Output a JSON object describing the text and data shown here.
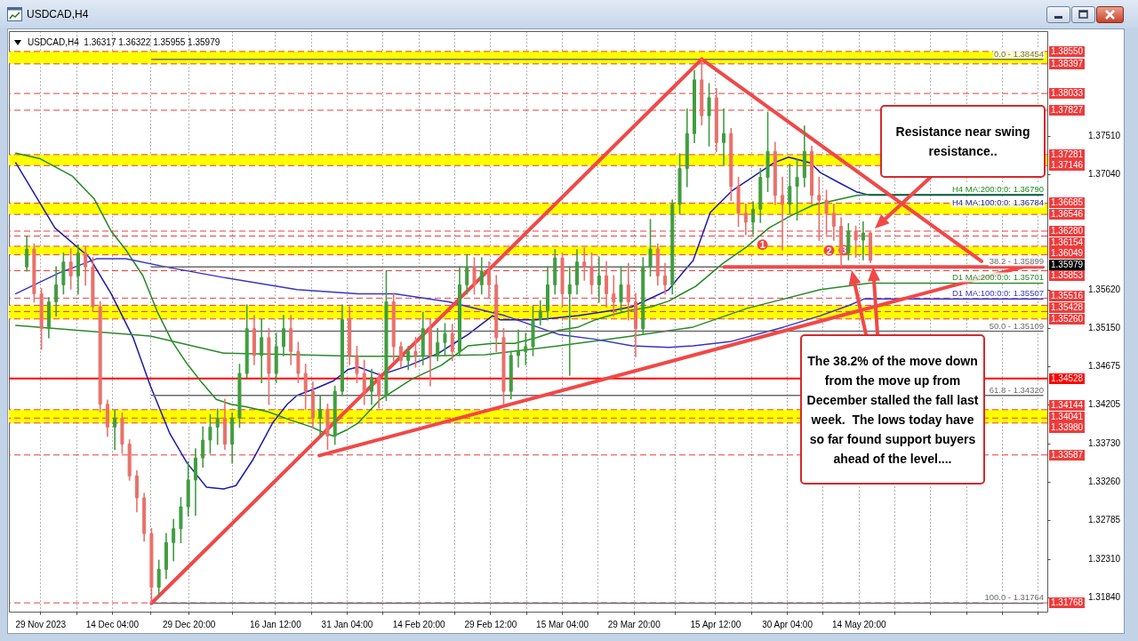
{
  "chart_data": {
    "type": "candlestick",
    "title": "USDCAD,H4",
    "subtitle": "USDCAD,H4  1.36317 1.36322 1.35955 1.35979",
    "x": [
      "2023-11-26T18:00",
      "2023-11-28T06:00",
      "2023-11-29T18:00",
      "2023-12-01T06:00",
      "2023-12-02T18:00",
      "2023-12-04T06:00",
      "2023-12-05T18:00",
      "2023-12-07T06:00",
      "2023-12-08T18:00",
      "2023-12-10T06:00",
      "2023-12-11T18:00",
      "2023-12-13T06:00",
      "2023-12-14T18:00",
      "2023-12-16T06:00",
      "2023-12-17T18:00",
      "2023-12-19T06:00",
      "2023-12-20T18:00",
      "2023-12-22T06:00",
      "2023-12-23T18:00",
      "2023-12-25T06:00",
      "2023-12-26T18:00",
      "2023-12-28T06:00",
      "2023-12-29T18:00",
      "2023-12-31T06:00",
      "2024-01-01T18:00",
      "2024-01-03T06:00",
      "2024-01-04T18:00",
      "2024-01-06T06:00",
      "2024-01-07T18:00",
      "2024-01-09T06:00",
      "2024-01-10T18:00",
      "2024-01-12T06:00",
      "2024-01-13T18:00",
      "2024-01-15T06:00",
      "2024-01-16T18:00",
      "2024-01-18T06:00",
      "2024-01-19T18:00",
      "2024-01-21T06:00",
      "2024-01-22T18:00",
      "2024-01-24T06:00",
      "2024-01-25T18:00",
      "2024-01-27T06:00",
      "2024-01-28T18:00",
      "2024-01-30T06:00",
      "2024-01-31T18:00",
      "2024-02-02T06:00",
      "2024-02-03T18:00",
      "2024-02-05T06:00",
      "2024-02-06T18:00",
      "2024-02-08T06:00",
      "2024-02-09T18:00",
      "2024-02-11T06:00",
      "2024-02-12T18:00",
      "2024-02-14T06:00",
      "2024-02-15T18:00",
      "2024-02-17T06:00",
      "2024-02-18T18:00",
      "2024-02-20T06:00",
      "2024-02-21T18:00",
      "2024-02-23T06:00",
      "2024-02-24T18:00",
      "2024-02-26T06:00",
      "2024-02-27T18:00",
      "2024-02-29T06:00",
      "2024-03-01T18:00",
      "2024-03-03T06:00",
      "2024-03-04T18:00",
      "2024-03-06T06:00",
      "2024-03-07T18:00",
      "2024-03-09T06:00",
      "2024-03-10T18:00",
      "2024-03-12T06:00",
      "2024-03-13T18:00",
      "2024-03-15T06:00",
      "2024-03-16T18:00",
      "2024-03-18T06:00",
      "2024-03-19T18:00",
      "2024-03-21T06:00",
      "2024-03-22T18:00",
      "2024-03-24T06:00",
      "2024-03-25T18:00",
      "2024-03-27T06:00",
      "2024-03-28T18:00",
      "2024-03-30T06:00",
      "2024-03-31T18:00",
      "2024-04-02T06:00",
      "2024-04-03T18:00",
      "2024-04-05T06:00",
      "2024-04-06T18:00",
      "2024-04-08T06:00",
      "2024-04-09T18:00",
      "2024-04-11T06:00",
      "2024-04-12T18:00",
      "2024-04-14T06:00",
      "2024-04-15T18:00",
      "2024-04-17T06:00",
      "2024-04-18T18:00",
      "2024-04-20T06:00",
      "2024-04-21T18:00",
      "2024-04-23T06:00",
      "2024-04-24T18:00",
      "2024-04-26T06:00",
      "2024-04-27T18:00",
      "2024-04-29T06:00",
      "2024-04-30T18:00",
      "2024-05-02T06:00",
      "2024-05-03T18:00",
      "2024-05-05T06:00",
      "2024-05-06T18:00",
      "2024-05-08T06:00",
      "2024-05-09T18:00",
      "2024-05-11T06:00",
      "2024-05-12T18:00",
      "2024-05-14T06:00",
      "2024-05-15T18:00",
      "2024-05-17T06:00"
    ],
    "ohlc": [
      [
        1.359,
        1.3627,
        1.3585,
        1.3612
      ],
      [
        1.3612,
        1.3618,
        1.3547,
        1.3557
      ],
      [
        1.3557,
        1.3563,
        1.3489,
        1.3514
      ],
      [
        1.3514,
        1.3552,
        1.3503,
        1.3547
      ],
      [
        1.3547,
        1.359,
        1.353,
        1.3568
      ],
      [
        1.3568,
        1.3607,
        1.3557,
        1.3596
      ],
      [
        1.3596,
        1.3612,
        1.3563,
        1.3579
      ],
      [
        1.3579,
        1.3617,
        1.3557,
        1.3607
      ],
      [
        1.3607,
        1.3614,
        1.3568,
        1.359
      ],
      [
        1.359,
        1.3601,
        1.3536,
        1.3541
      ],
      [
        1.3541,
        1.3547,
        1.3412,
        1.3421
      ],
      [
        1.3421,
        1.3426,
        1.3382,
        1.3393
      ],
      [
        1.3393,
        1.3413,
        1.3366,
        1.3404
      ],
      [
        1.3404,
        1.341,
        1.3361,
        1.3372
      ],
      [
        1.3372,
        1.3377,
        1.3328,
        1.3333
      ],
      [
        1.3333,
        1.3339,
        1.3289,
        1.3306
      ],
      [
        1.3306,
        1.3311,
        1.3253,
        1.3262
      ],
      [
        1.3262,
        1.3268,
        1.3177,
        1.3196
      ],
      [
        1.3196,
        1.3229,
        1.3186,
        1.3218
      ],
      [
        1.3218,
        1.3262,
        1.3207,
        1.3251
      ],
      [
        1.3251,
        1.3279,
        1.3229,
        1.3268
      ],
      [
        1.3268,
        1.3306,
        1.3251,
        1.3295
      ],
      [
        1.3295,
        1.335,
        1.3284,
        1.3328
      ],
      [
        1.3328,
        1.3366,
        1.3285,
        1.3355
      ],
      [
        1.3355,
        1.3393,
        1.3344,
        1.3377
      ],
      [
        1.3377,
        1.3408,
        1.3361,
        1.3393
      ],
      [
        1.3393,
        1.3415,
        1.3372,
        1.3404
      ],
      [
        1.3404,
        1.3427,
        1.3366,
        1.3372
      ],
      [
        1.3372,
        1.341,
        1.3349,
        1.3404
      ],
      [
        1.3404,
        1.347,
        1.3393,
        1.3459
      ],
      [
        1.3459,
        1.3543,
        1.3454,
        1.3514
      ],
      [
        1.3514,
        1.353,
        1.347,
        1.3481
      ],
      [
        1.3481,
        1.3525,
        1.3448,
        1.3503
      ],
      [
        1.3503,
        1.3514,
        1.3421,
        1.3459
      ],
      [
        1.3459,
        1.3508,
        1.3448,
        1.3492
      ],
      [
        1.3492,
        1.353,
        1.3481,
        1.3514
      ],
      [
        1.3514,
        1.353,
        1.347,
        1.3486
      ],
      [
        1.3486,
        1.3497,
        1.3448,
        1.3459
      ],
      [
        1.3459,
        1.347,
        1.3415,
        1.3437
      ],
      [
        1.3437,
        1.3448,
        1.3393,
        1.3404
      ],
      [
        1.3404,
        1.3432,
        1.3382,
        1.3415
      ],
      [
        1.3415,
        1.3421,
        1.3366,
        1.3382
      ],
      [
        1.3382,
        1.3443,
        1.3372,
        1.3437
      ],
      [
        1.3437,
        1.3543,
        1.3432,
        1.3525
      ],
      [
        1.3525,
        1.3541,
        1.347,
        1.3481
      ],
      [
        1.3481,
        1.3492,
        1.3448,
        1.3459
      ],
      [
        1.3459,
        1.3475,
        1.3421,
        1.3437
      ],
      [
        1.3437,
        1.3464,
        1.3421,
        1.3454
      ],
      [
        1.3454,
        1.3459,
        1.3417,
        1.3432
      ],
      [
        1.3432,
        1.3585,
        1.3426,
        1.3547
      ],
      [
        1.3547,
        1.3557,
        1.3475,
        1.3492
      ],
      [
        1.3492,
        1.3497,
        1.3467,
        1.3475
      ],
      [
        1.3475,
        1.3492,
        1.3464,
        1.3486
      ],
      [
        1.3486,
        1.3503,
        1.3467,
        1.3481
      ],
      [
        1.3481,
        1.3534,
        1.347,
        1.3514
      ],
      [
        1.3514,
        1.3525,
        1.3444,
        1.3481
      ],
      [
        1.3481,
        1.3514,
        1.3475,
        1.3497
      ],
      [
        1.3497,
        1.352,
        1.3481,
        1.3508
      ],
      [
        1.3508,
        1.3519,
        1.3475,
        1.3486
      ],
      [
        1.3486,
        1.359,
        1.3481,
        1.3568
      ],
      [
        1.3568,
        1.3605,
        1.3557,
        1.359
      ],
      [
        1.359,
        1.3601,
        1.3557,
        1.3568
      ],
      [
        1.3568,
        1.3601,
        1.3557,
        1.3585
      ],
      [
        1.3585,
        1.3596,
        1.3552,
        1.3568
      ],
      [
        1.3568,
        1.3579,
        1.3486,
        1.3503
      ],
      [
        1.3503,
        1.3514,
        1.3421,
        1.3437
      ],
      [
        1.3437,
        1.3486,
        1.3428,
        1.3481
      ],
      [
        1.3481,
        1.3512,
        1.3467,
        1.3486
      ],
      [
        1.3486,
        1.3508,
        1.347,
        1.3492
      ],
      [
        1.3492,
        1.3541,
        1.3481,
        1.3525
      ],
      [
        1.3525,
        1.3548,
        1.3519,
        1.3536
      ],
      [
        1.3536,
        1.359,
        1.3525,
        1.3568
      ],
      [
        1.3568,
        1.3611,
        1.3557,
        1.3601
      ],
      [
        1.3601,
        1.3607,
        1.3541,
        1.3557
      ],
      [
        1.3557,
        1.359,
        1.3457,
        1.3568
      ],
      [
        1.3568,
        1.3611,
        1.3557,
        1.3596
      ],
      [
        1.3596,
        1.3613,
        1.3574,
        1.359
      ],
      [
        1.359,
        1.3607,
        1.3557,
        1.3568
      ],
      [
        1.3568,
        1.3602,
        1.3547,
        1.3579
      ],
      [
        1.3579,
        1.3596,
        1.3541,
        1.3557
      ],
      [
        1.3557,
        1.3579,
        1.353,
        1.3547
      ],
      [
        1.3547,
        1.359,
        1.3536,
        1.3568
      ],
      [
        1.3568,
        1.3594,
        1.3525,
        1.3547
      ],
      [
        1.3547,
        1.3557,
        1.348,
        1.3514
      ],
      [
        1.3514,
        1.3601,
        1.3508,
        1.359
      ],
      [
        1.359,
        1.3648,
        1.3579,
        1.3612
      ],
      [
        1.3612,
        1.3618,
        1.3568,
        1.3579
      ],
      [
        1.3579,
        1.3594,
        1.3557,
        1.3568
      ],
      [
        1.3568,
        1.3672,
        1.3557,
        1.3667
      ],
      [
        1.3667,
        1.3729,
        1.3656,
        1.3711
      ],
      [
        1.3711,
        1.3784,
        1.3689,
        1.3754
      ],
      [
        1.3754,
        1.3831,
        1.3743,
        1.382
      ],
      [
        1.382,
        1.3845,
        1.3765,
        1.3776
      ],
      [
        1.3776,
        1.3815,
        1.3739,
        1.3798
      ],
      [
        1.3798,
        1.3809,
        1.3732,
        1.3743
      ],
      [
        1.3743,
        1.3784,
        1.3716,
        1.3754
      ],
      [
        1.3754,
        1.376,
        1.3672,
        1.3689
      ],
      [
        1.3689,
        1.37,
        1.364,
        1.3656
      ],
      [
        1.3656,
        1.3667,
        1.363,
        1.3645
      ],
      [
        1.3645,
        1.367,
        1.363,
        1.3661
      ],
      [
        1.3661,
        1.3711,
        1.3645,
        1.37
      ],
      [
        1.37,
        1.378,
        1.3683,
        1.3732
      ],
      [
        1.3732,
        1.3743,
        1.3667,
        1.3678
      ],
      [
        1.3678,
        1.37,
        1.3611,
        1.3667
      ],
      [
        1.3667,
        1.3716,
        1.3656,
        1.3689
      ],
      [
        1.3689,
        1.3722,
        1.3648,
        1.37
      ],
      [
        1.37,
        1.3763,
        1.3689,
        1.3732
      ],
      [
        1.3732,
        1.3738,
        1.3667,
        1.3678
      ],
      [
        1.3678,
        1.37,
        1.3623,
        1.3672
      ],
      [
        1.3672,
        1.3684,
        1.363,
        1.3656
      ],
      [
        1.3656,
        1.3667,
        1.3623,
        1.364
      ],
      [
        1.364,
        1.365,
        1.3591,
        1.3607
      ],
      [
        1.3607,
        1.3643,
        1.3599,
        1.3634
      ],
      [
        1.3634,
        1.364,
        1.3602,
        1.3623
      ],
      [
        1.3623,
        1.3645,
        1.3599,
        1.36317
      ],
      [
        1.36317,
        1.36322,
        1.35955,
        1.35979
      ]
    ],
    "colors": [
      "#3f9d3f",
      "#e9706a",
      "#e9706a",
      "#3f9d3f",
      "#3f9d3f",
      "#3f9d3f",
      "#e9706a",
      "#3f9d3f",
      "#e9706a",
      "#e9706a",
      "#e9706a",
      "#e9706a",
      "#3f9d3f",
      "#e9706a",
      "#e9706a",
      "#e9706a",
      "#e9706a",
      "#e9706a",
      "#3f9d3f",
      "#3f9d3f",
      "#3f9d3f",
      "#3f9d3f",
      "#3f9d3f",
      "#3f9d3f",
      "#3f9d3f",
      "#3f9d3f",
      "#3f9d3f",
      "#e9706a",
      "#3f9d3f",
      "#3f9d3f",
      "#3f9d3f",
      "#e9706a",
      "#3f9d3f",
      "#e9706a",
      "#3f9d3f",
      "#3f9d3f",
      "#e9706a",
      "#e9706a",
      "#e9706a",
      "#e9706a",
      "#3f9d3f",
      "#e9706a",
      "#3f9d3f",
      "#3f9d3f",
      "#e9706a",
      "#e9706a",
      "#e9706a",
      "#3f9d3f",
      "#e9706a",
      "#3f9d3f",
      "#e9706a",
      "#e9706a",
      "#3f9d3f",
      "#e9706a",
      "#3f9d3f",
      "#e9706a",
      "#3f9d3f",
      "#3f9d3f",
      "#e9706a",
      "#3f9d3f",
      "#3f9d3f",
      "#e9706a",
      "#3f9d3f",
      "#e9706a",
      "#e9706a",
      "#e9706a",
      "#3f9d3f",
      "#3f9d3f",
      "#3f9d3f",
      "#3f9d3f",
      "#3f9d3f",
      "#3f9d3f",
      "#3f9d3f",
      "#e9706a",
      "#3f9d3f",
      "#3f9d3f",
      "#e9706a",
      "#e9706a",
      "#3f9d3f",
      "#e9706a",
      "#e9706a",
      "#3f9d3f",
      "#e9706a",
      "#e9706a",
      "#3f9d3f",
      "#3f9d3f",
      "#e9706a",
      "#e9706a",
      "#3f9d3f",
      "#3f9d3f",
      "#3f9d3f",
      "#3f9d3f",
      "#e9706a",
      "#3f9d3f",
      "#e9706a",
      "#3f9d3f",
      "#e9706a",
      "#e9706a",
      "#e9706a",
      "#3f9d3f",
      "#3f9d3f",
      "#3f9d3f",
      "#e9706a",
      "#e9706a",
      "#3f9d3f",
      "#3f9d3f",
      "#3f9d3f",
      "#e9706a",
      "#e9706a",
      "#e9706a",
      "#e9706a",
      "#e9706a",
      "#3f9d3f",
      "#e9706a",
      "#3f9d3f",
      "#e9706a"
    ],
    "series": [
      {
        "type": "line",
        "name": "H4 MA:100:0:0: 1.36784",
        "color": "#1a1ab0",
        "x": [
          "2023-11-24T12:00",
          "2023-12-02T12:00",
          "2023-12-09T12:00",
          "2023-12-14T00:00",
          "2023-12-18T12:00",
          "2023-12-22T00:00",
          "2023-12-26T00:00",
          "2023-12-29T12:00",
          "2024-01-02T12:00",
          "2024-01-06T00:00",
          "2024-01-08T12:00",
          "2024-01-12T00:00",
          "2024-01-16T00:00",
          "2024-01-19T00:00",
          "2024-01-21T00:00",
          "2024-01-25T00:00",
          "2024-01-28T12:00",
          "2024-01-31T12:00",
          "2024-02-02T12:00",
          "2024-02-07T00:00",
          "2024-02-13T00:00",
          "2024-02-19T00:00",
          "2024-02-25T00:00",
          "2024-03-01T00:00",
          "2024-03-02T12:00",
          "2024-03-10T00:00",
          "2024-03-18T12:00",
          "2024-03-26T00:00",
          "2024-03-29T12:00",
          "2024-04-02T12:00",
          "2024-04-06T00:00",
          "2024-04-09T00:00",
          "2024-04-11T00:00",
          "2024-04-14T12:00",
          "2024-04-19T00:00",
          "2024-04-23T12:00",
          "2024-04-27T12:00",
          "2024-04-30T12:00",
          "2024-05-05T00:00",
          "2024-05-07T00:00",
          "2024-05-11T00:00",
          "2024-05-14T12:00",
          "2024-05-17T00:00",
          "2024-06-21T12:00"
        ],
        "values": [
          1.3718,
          1.3638,
          1.3602,
          1.3557,
          1.3503,
          1.3444,
          1.3385,
          1.3349,
          1.3319,
          1.3317,
          1.3321,
          1.3353,
          1.3398,
          1.3421,
          1.3432,
          1.3441,
          1.345,
          1.3464,
          1.3467,
          1.3457,
          1.3469,
          1.3484,
          1.3507,
          1.353,
          1.3525,
          1.3525,
          1.353,
          1.3537,
          1.3541,
          1.3552,
          1.3562,
          1.3584,
          1.3598,
          1.3657,
          1.3684,
          1.3702,
          1.3718,
          1.3725,
          1.3718,
          1.3706,
          1.3693,
          1.3682,
          1.36784,
          1.36784
        ]
      },
      {
        "type": "line",
        "name": "H4 MA:200:0:0: 1.36790",
        "color": "#1f8a1f",
        "x": [
          "2023-11-24T12:00",
          "2023-11-29T12:00",
          "2023-12-06T00:00",
          "2023-12-10T12:00",
          "2023-12-14T00:00",
          "2023-12-17T00:00",
          "2023-12-20T12:00",
          "2023-12-23T12:00",
          "2023-12-26T12:00",
          "2023-12-29T12:00",
          "2024-01-01T12:00",
          "2024-01-04T12:00",
          "2024-01-07T12:00",
          "2024-01-10T12:00",
          "2024-01-15T00:00",
          "2024-01-19T12:00",
          "2024-01-24T00:00",
          "2024-01-27T00:00",
          "2024-01-28T12:00",
          "2024-01-31T00:00",
          "2024-02-02T12:00",
          "2024-02-07T00:00",
          "2024-02-13T12:00",
          "2024-02-19T12:00",
          "2024-02-25T00:00",
          "2024-03-01T00:00",
          "2024-03-05T12:00",
          "2024-03-10T00:00",
          "2024-03-14T12:00",
          "2024-03-18T12:00",
          "2024-03-22T00:00",
          "2024-03-26T00:00",
          "2024-03-29T12:00",
          "2024-04-02T12:00",
          "2024-04-06T00:00",
          "2024-04-09T00:00",
          "2024-04-11T12:00",
          "2024-04-17T00:00",
          "2024-04-22T00:00",
          "2024-04-26T12:00",
          "2024-05-01T00:00",
          "2024-05-05T12:00",
          "2024-05-10T00:00",
          "2024-05-14T12:00",
          "2024-05-17T00:00",
          "2024-06-21T12:00"
        ],
        "values": [
          1.373,
          1.3723,
          1.3702,
          1.3674,
          1.3634,
          1.3611,
          1.3579,
          1.3534,
          1.3498,
          1.3471,
          1.3448,
          1.3427,
          1.3421,
          1.3418,
          1.3412,
          1.3402,
          1.3393,
          1.3385,
          1.3382,
          1.3389,
          1.3398,
          1.3427,
          1.3452,
          1.3469,
          1.3493,
          1.3496,
          1.3496,
          1.3503,
          1.3512,
          1.3516,
          1.3525,
          1.3532,
          1.3537,
          1.3541,
          1.3548,
          1.3558,
          1.3566,
          1.3594,
          1.3615,
          1.3638,
          1.3653,
          1.3666,
          1.3672,
          1.3678,
          1.3679,
          1.3679
        ]
      },
      {
        "type": "line",
        "name": "D1 MA:200:0:0: 1.35701",
        "color": "#2a8a2a",
        "x": [
          "2023-11-24T12:00",
          "2023-12-22T00:00",
          "2024-01-06T00:00",
          "2024-01-21T00:00",
          "2024-02-02T12:00",
          "2024-02-13T12:00",
          "2024-02-28T12:00",
          "2024-03-14T12:00",
          "2024-03-29T12:00",
          "2024-04-11T00:00",
          "2024-04-22T00:00",
          "2024-05-07T00:00",
          "2024-05-17T00:00",
          "2024-06-21T12:00"
        ],
        "values": [
          1.3518,
          1.3505,
          1.3484,
          1.3482,
          1.348,
          1.348,
          1.3482,
          1.3493,
          1.3505,
          1.3516,
          1.3539,
          1.3562,
          1.35701,
          1.35701
        ]
      },
      {
        "type": "line",
        "name": "D1 MA:100:0:0: 1.35507",
        "color": "#3434c8",
        "x": [
          "2023-11-24T12:00",
          "2023-12-03T12:00",
          "2023-12-11T00:00",
          "2023-12-17T00:00",
          "2023-12-26T00:00",
          "2024-01-06T00:00",
          "2024-01-21T00:00",
          "2024-02-02T12:00",
          "2024-02-10T00:00",
          "2024-02-21T00:00",
          "2024-03-03T12:00",
          "2024-03-14T12:00",
          "2024-03-22T00:00",
          "2024-03-29T12:00",
          "2024-04-06T00:00",
          "2024-04-11T00:00",
          "2024-04-18T12:00",
          "2024-04-29T12:00",
          "2024-05-07T00:00",
          "2024-05-13T00:00",
          "2024-05-16T00:00",
          "2024-06-21T12:00"
        ],
        "values": [
          1.3557,
          1.3583,
          1.36,
          1.36,
          1.3589,
          1.3577,
          1.3562,
          1.3557,
          1.3557,
          1.3547,
          1.353,
          1.3507,
          1.3501,
          1.3493,
          1.3491,
          1.3493,
          1.3498,
          1.3516,
          1.353,
          1.3543,
          1.35507,
          1.35507
        ]
      },
      {
        "type": "line",
        "name": "0.0 - 1.38454",
        "color": "#6a6a6a",
        "x": [
          "2023-12-22T06:00",
          "2024-06-21T12:00"
        ],
        "values": [
          1.38454,
          1.38454
        ]
      },
      {
        "type": "line",
        "name": "38.2 - 1.35899",
        "color": "#6a6a6a",
        "x": [
          "2023-12-22T06:00",
          "2024-06-21T12:00"
        ],
        "values": [
          1.35899,
          1.35899
        ]
      },
      {
        "type": "line",
        "name": "50.0 - 1.35109",
        "color": "#6a6a6a",
        "x": [
          "2023-12-22T06:00",
          "2024-06-21T12:00"
        ],
        "values": [
          1.35109,
          1.35109
        ]
      },
      {
        "type": "line",
        "name": "61.8 - 1.34320",
        "color": "#6a6a6a",
        "x": [
          "2023-12-22T06:00",
          "2024-06-21T12:00"
        ],
        "values": [
          1.3432,
          1.3432
        ]
      },
      {
        "type": "line",
        "name": "100.0 - 1.31764",
        "color": "#6a6a6a",
        "x": [
          "2023-12-22T06:00",
          "2024-06-21T12:00"
        ],
        "values": [
          1.31764,
          1.31764
        ]
      },
      {
        "type": "line",
        "color": "#f04848",
        "x": [
          "2023-12-22T06:00",
          "2024-04-12T18:00"
        ],
        "values": [
          1.31764,
          1.38454
        ]
      },
      {
        "type": "line",
        "color": "#f04848",
        "x": [
          "2024-04-12T18:00",
          "2024-06-08T23:00"
        ],
        "values": [
          1.38454,
          1.3597
        ]
      },
      {
        "type": "line",
        "color": "#f04848",
        "x": [
          "2024-01-25T14:00",
          "2024-06-19T05:00"
        ],
        "values": [
          1.3358,
          1.3593
        ]
      },
      {
        "type": "line",
        "color": "#f04848",
        "x": [
          "2024-04-17T08:00",
          "2024-06-21T12:00"
        ],
        "values": [
          1.359,
          1.359
        ]
      }
    ],
    "xlim": [
      "2023-11-24T00:00",
      "2024-06-21T12:00"
    ],
    "xticks": [
      {
        "value": "2023-11-29T12:00",
        "label": "29 Nov 2023"
      },
      {
        "value": "2023-12-06T20:00",
        "label": null
      },
      {
        "value": "2023-12-14T04:00",
        "label": "14 Dec 04:00"
      },
      {
        "value": "2023-12-22T00:00",
        "label": null
      },
      {
        "value": "2023-12-29T20:00",
        "label": "29 Dec 20:00"
      },
      {
        "value": "2024-01-07T16:00",
        "label": null
      },
      {
        "value": "2024-01-16T12:00",
        "label": "16 Jan 12:00"
      },
      {
        "value": "2024-01-23T20:00",
        "label": null
      },
      {
        "value": "2024-01-31T04:00",
        "label": "31 Jan 04:00"
      },
      {
        "value": "2024-02-07T12:00",
        "label": null
      },
      {
        "value": "2024-02-14T20:00",
        "label": "14 Feb 20:00"
      },
      {
        "value": "2024-02-22T04:00",
        "label": null
      },
      {
        "value": "2024-02-29T12:00",
        "label": "29 Feb 12:00"
      },
      {
        "value": "2024-03-07T20:00",
        "label": null
      },
      {
        "value": "2024-03-15T04:00",
        "label": "15 Mar 04:00"
      },
      {
        "value": "2024-03-22T12:00",
        "label": null
      },
      {
        "value": "2024-03-29T20:00",
        "label": "29 Mar 20:00"
      },
      {
        "value": "2024-04-07T04:00",
        "label": null
      },
      {
        "value": "2024-04-15T12:00",
        "label": "15 Apr 12:00"
      },
      {
        "value": "2024-04-22T20:00",
        "label": null
      },
      {
        "value": "2024-04-30T04:00",
        "label": "30 Apr 04:00"
      },
      {
        "value": "2024-05-07T12:00",
        "label": null
      },
      {
        "value": "2024-05-14T20:00",
        "label": "14 May 20:00"
      },
      {
        "value": "2024-05-22T04:00",
        "label": null
      },
      {
        "value": "2024-05-29T12:00",
        "label": null
      },
      {
        "value": "2024-06-05T20:00",
        "label": null
      },
      {
        "value": "2024-06-13T04:00",
        "label": null
      },
      {
        "value": "2024-06-20T12:00",
        "label": null
      }
    ],
    "ylim": [
      1.3166,
      1.388
    ],
    "yticks": [
      {
        "value": 1.3751,
        "label": "1.37510"
      },
      {
        "value": 1.3704,
        "label": "1.37040"
      },
      {
        "value": 1.3562,
        "label": "1.35620"
      },
      {
        "value": 1.3515,
        "label": "1.35150"
      },
      1.34675,
      1.34205,
      {
        "value": 1.3373,
        "label": "1.33730"
      },
      {
        "value": 1.3326,
        "label": "1.33260"
      },
      1.32785,
      {
        "value": 1.3231,
        "label": "1.32310"
      },
      {
        "value": 1.3184,
        "label": "1.31840"
      }
    ],
    "ref_lines": [
      {
        "axis": "y",
        "value": 1.3855,
        "label": "1.38550",
        "color": "#ee3b3b",
        "line_style": "dashed"
      },
      {
        "axis": "y",
        "value": 1.38397,
        "label": "1.38397",
        "color": "#ee3b3b",
        "line_style": "dashed"
      },
      {
        "axis": "y",
        "value": 1.38033,
        "label": "1.38033",
        "color": "#ee3b3b",
        "line_style": "dashed"
      },
      {
        "axis": "y",
        "value": 1.37827,
        "label": "1.37827",
        "color": "#ee3b3b",
        "line_style": "dashed"
      },
      {
        "axis": "y",
        "value": 1.37281,
        "label": "1.37281",
        "color": "#ee3b3b",
        "line_style": "dashed"
      },
      {
        "axis": "y",
        "value": 1.37146,
        "label": "1.37146",
        "color": "#ee3b3b",
        "line_style": "dashed"
      },
      {
        "axis": "y",
        "value": 1.36685,
        "label": "1.36685",
        "color": "#ee3b3b",
        "line_style": "dashed"
      },
      {
        "axis": "y",
        "value": 1.36546,
        "label": "1.36546",
        "color": "#ee3b3b",
        "line_style": "dashed"
      },
      {
        "axis": "y",
        "value": 1.3634,
        "color": "#ee3b3b",
        "line_style": "dashed"
      },
      {
        "axis": "y",
        "value": 1.3628,
        "label": "1.36280",
        "color": "#ee3b3b",
        "line_style": "dashed"
      },
      {
        "axis": "y",
        "value": 1.36154,
        "label": "1.36154",
        "color": "#ee3b3b",
        "line_style": "dashed"
      },
      {
        "axis": "y",
        "value": 1.36049,
        "label": "1.36049",
        "color": "#ee3b3b",
        "line_style": "dashed"
      },
      {
        "axis": "y",
        "value": 1.35853,
        "label": "1.35853",
        "color": "#ee3b3b",
        "line_style": "dashed"
      },
      {
        "axis": "y",
        "value": 1.35516,
        "label": "1.35516",
        "color": "#ee3b3b",
        "line_style": "dashed"
      },
      {
        "axis": "y",
        "value": 1.35428,
        "label": "1.35428",
        "color": "#ee3b3b",
        "line_style": "dashed"
      },
      {
        "axis": "y",
        "value": 1.3535,
        "color": "#ee3b3b",
        "line_style": "dashed"
      },
      {
        "axis": "y",
        "value": 1.3526,
        "label": "1.35260",
        "color": "#ee3b3b",
        "line_style": "dashed"
      },
      {
        "axis": "y",
        "value": 1.34528,
        "label": "1.34528",
        "color": "#ff0000",
        "line_style": "solid"
      },
      {
        "axis": "y",
        "value": 1.34144,
        "label": "1.34144",
        "color": "#ee3b3b",
        "line_style": "dashed"
      },
      {
        "axis": "y",
        "value": 1.34041,
        "label": "1.34041",
        "color": "#ee3b3b",
        "line_style": "dashed"
      },
      {
        "axis": "y",
        "value": 1.3398,
        "label": "1.33980",
        "color": "#ee3b3b",
        "line_style": "dashed"
      },
      {
        "axis": "y",
        "value": 1.33587,
        "label": "1.33587",
        "color": "#ee3b3b",
        "line_style": "dashed"
      },
      {
        "axis": "y",
        "value": 1.31768,
        "label": "1.31768",
        "color": "#ee3b3b",
        "line_style": "dashed"
      }
    ],
    "bands": [
      {
        "axis": "y",
        "from": 1.38397,
        "to": 1.3855,
        "color": "#ffff00"
      },
      {
        "axis": "y",
        "from": 1.37146,
        "to": 1.37281,
        "color": "#ffff00"
      },
      {
        "axis": "y",
        "from": 1.36546,
        "to": 1.36685,
        "color": "#ffff00"
      },
      {
        "axis": "y",
        "from": 1.36049,
        "to": 1.36154,
        "color": "#ffff00"
      },
      {
        "axis": "y",
        "from": 1.3526,
        "to": 1.35428,
        "color": "#ffff00"
      },
      {
        "axis": "y",
        "from": 1.3398,
        "to": 1.34144,
        "color": "#ffff00"
      }
    ],
    "annotations": [
      "Resistance near swing resistance..",
      "The 38.2% of the move down from the move up from December stalled the fall last week.  The lows today have so far found support buyers ahead of the level....",
      {
        "text": "1",
        "x": "2024-04-24T18:00",
        "y": 1.363
      },
      "2",
      {
        "text": "3",
        "x": "2024-05-11T06:00",
        "y": 1.3623
      },
      "1.35979"
    ],
    "grid": "x"
  }
}
